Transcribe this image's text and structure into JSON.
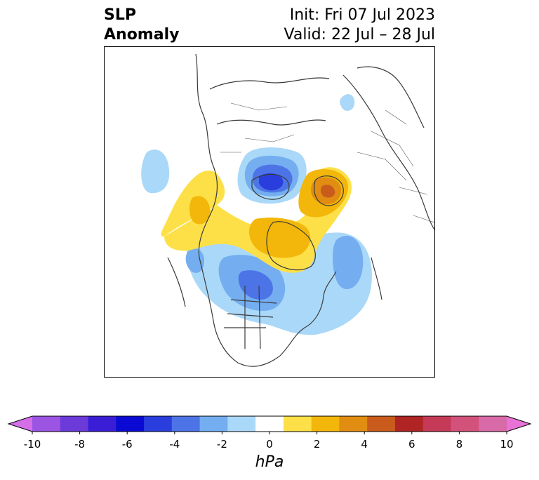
{
  "title": {
    "left_line1": "SLP",
    "left_line2": "Anomaly",
    "right_line1": "Init: Fri 07 Jul 2023",
    "right_line2": "Valid: 22 Jul – 28 Jul"
  },
  "colorbar": {
    "unit": "hPa",
    "tick_labels": [
      "-10",
      "-8",
      "-6",
      "-4",
      "-2",
      "0",
      "2",
      "4",
      "6",
      "8",
      "10"
    ],
    "colors": [
      "#d46fe8",
      "#9b55e2",
      "#6c3ad9",
      "#3a1ed6",
      "#0a0ad4",
      "#2a3ede",
      "#4d74e6",
      "#74aef0",
      "#aad8f8",
      "#ffffff",
      "#fde047",
      "#f2b70a",
      "#e08d12",
      "#c95c1c",
      "#b02424",
      "#c43a57",
      "#d2527c",
      "#d86aa8",
      "#e773d6"
    ]
  },
  "map": {
    "description_colors": {
      "coast": "#3a3a3a",
      "neg_light": "#aad8f8",
      "neg_mid": "#74aef0",
      "neg_dark": "#4d74e6",
      "neg_darker": "#2a3ede",
      "pos_light": "#fde047",
      "pos_mid": "#f2b70a",
      "pos_dark": "#e08d12",
      "pos_darker": "#c95c1c"
    }
  }
}
